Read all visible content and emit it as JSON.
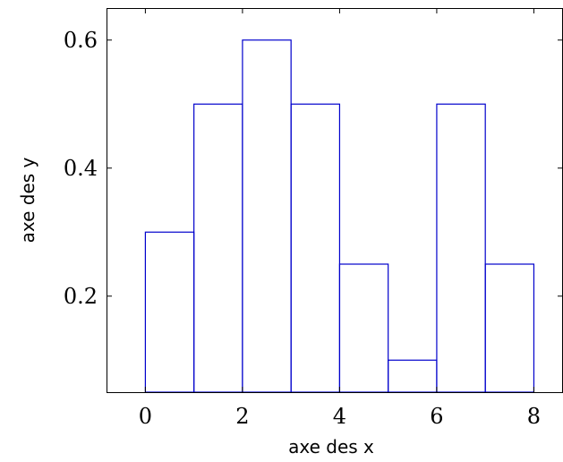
{
  "chart_data": {
    "type": "bar",
    "title": "",
    "xlabel": "axe des x",
    "ylabel": "axe des y",
    "bins": [
      {
        "x_start": 0,
        "x_end": 1,
        "value": 0.3
      },
      {
        "x_start": 1,
        "x_end": 2,
        "value": 0.5
      },
      {
        "x_start": 2,
        "x_end": 3,
        "value": 0.6
      },
      {
        "x_start": 3,
        "x_end": 4,
        "value": 0.5
      },
      {
        "x_start": 4,
        "x_end": 5,
        "value": 0.25
      },
      {
        "x_start": 5,
        "x_end": 6,
        "value": 0.1
      },
      {
        "x_start": 6,
        "x_end": 7,
        "value": 0.5
      },
      {
        "x_start": 7,
        "x_end": 8,
        "value": 0.25
      }
    ],
    "xlim": [
      -0.8,
      8.6
    ],
    "ylim": [
      0.05,
      0.65
    ],
    "xticks": [
      0,
      2,
      4,
      6,
      8
    ],
    "xtick_labels": [
      "0",
      "2",
      "4",
      "6",
      "8"
    ],
    "yticks": [
      0.2,
      0.4,
      0.6
    ],
    "ytick_labels": [
      "0.2",
      "0.4",
      "0.6"
    ],
    "grid": false,
    "bar_fill": "none",
    "bar_stroke": "#0000cc",
    "axis_color": "#000000"
  }
}
